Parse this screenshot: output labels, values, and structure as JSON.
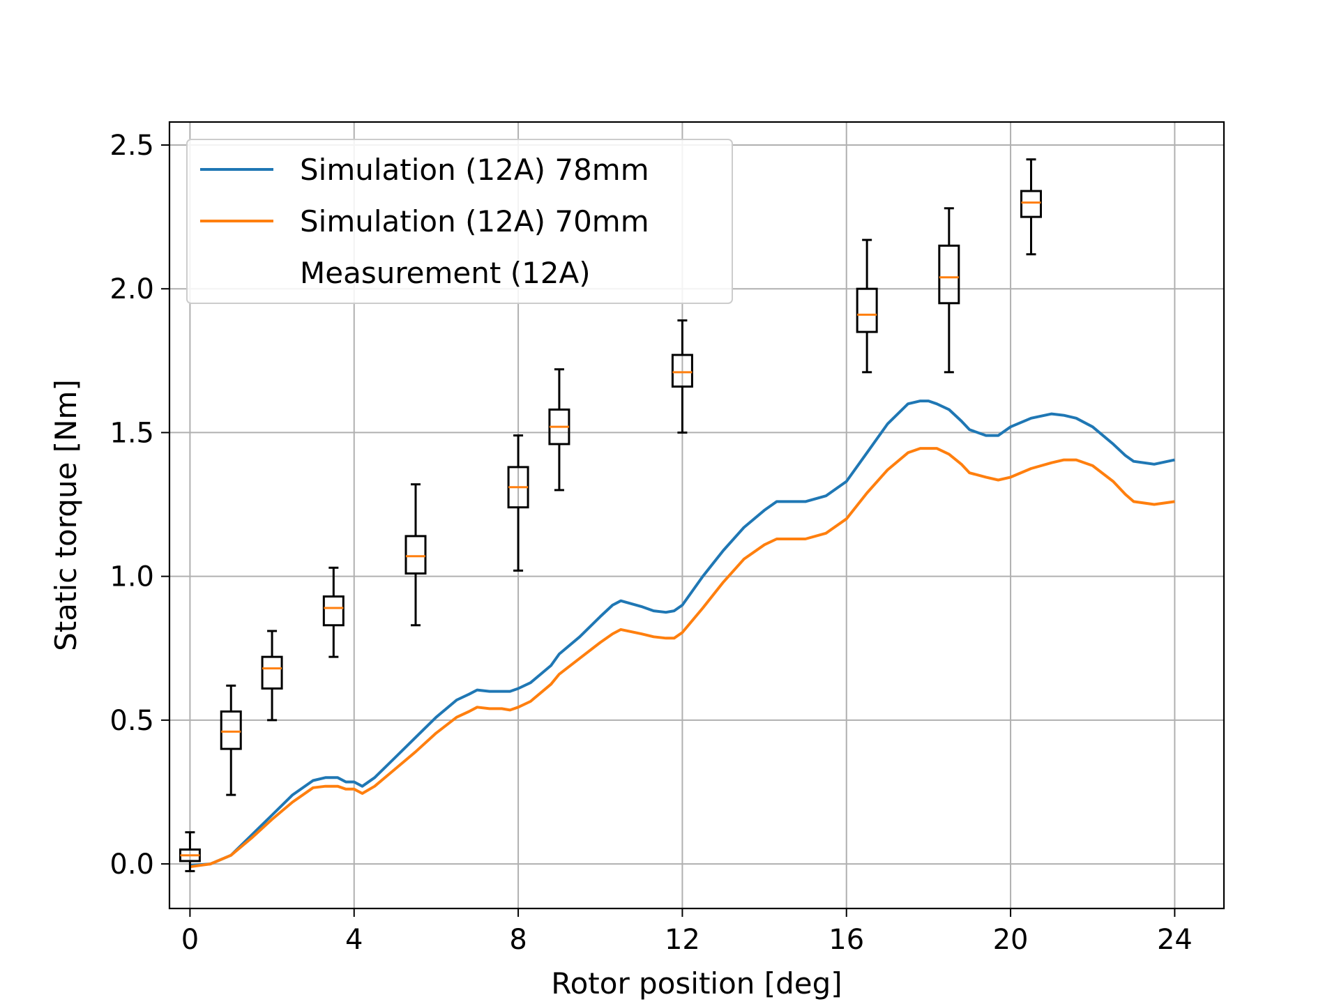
{
  "chart_data": {
    "type": "line",
    "xlabel": "Rotor position [deg]",
    "ylabel": "Static torque [Nm]",
    "xlim": [
      -0.5,
      25.2
    ],
    "ylim": [
      -0.155,
      2.58
    ],
    "xticks": [
      0,
      4,
      8,
      12,
      16,
      20,
      24
    ],
    "yticks": [
      0.0,
      0.5,
      1.0,
      1.5,
      2.0,
      2.5
    ],
    "grid": true,
    "legend_position": "top-left",
    "series": [
      {
        "name": "Simulation (12A) 78mm",
        "color": "#1f77b4",
        "x": [
          0,
          0.5,
          1.0,
          1.5,
          2.0,
          2.5,
          3.0,
          3.3,
          3.6,
          3.8,
          4.0,
          4.2,
          4.5,
          5.0,
          5.5,
          6.0,
          6.5,
          6.8,
          7.0,
          7.3,
          7.6,
          7.8,
          8.0,
          8.3,
          8.8,
          9.0,
          9.5,
          10.0,
          10.3,
          10.5,
          11.0,
          11.3,
          11.6,
          11.8,
          12.0,
          12.5,
          13.0,
          13.5,
          14.0,
          14.3,
          14.6,
          15.0,
          15.5,
          16.0,
          16.5,
          17.0,
          17.5,
          17.8,
          18.0,
          18.2,
          18.5,
          18.8,
          19.0,
          19.4,
          19.7,
          20.0,
          20.5,
          21.0,
          21.3,
          21.6,
          22.0,
          22.5,
          22.8,
          23.0,
          23.5,
          24.0
        ],
        "values": [
          -0.005,
          0.0,
          0.03,
          0.1,
          0.17,
          0.24,
          0.29,
          0.3,
          0.3,
          0.285,
          0.285,
          0.27,
          0.3,
          0.37,
          0.44,
          0.51,
          0.57,
          0.59,
          0.605,
          0.6,
          0.6,
          0.6,
          0.61,
          0.63,
          0.69,
          0.73,
          0.79,
          0.86,
          0.9,
          0.915,
          0.895,
          0.88,
          0.875,
          0.88,
          0.9,
          1.0,
          1.09,
          1.17,
          1.23,
          1.26,
          1.26,
          1.26,
          1.28,
          1.33,
          1.43,
          1.53,
          1.6,
          1.61,
          1.61,
          1.6,
          1.58,
          1.54,
          1.51,
          1.49,
          1.49,
          1.52,
          1.55,
          1.565,
          1.56,
          1.55,
          1.52,
          1.46,
          1.42,
          1.4,
          1.39,
          1.405
        ]
      },
      {
        "name": "Simulation (12A) 70mm",
        "color": "#ff7f0e",
        "x": [
          0,
          0.5,
          1.0,
          1.5,
          2.0,
          2.5,
          3.0,
          3.3,
          3.6,
          3.8,
          4.0,
          4.2,
          4.5,
          5.0,
          5.5,
          6.0,
          6.5,
          6.8,
          7.0,
          7.3,
          7.6,
          7.8,
          8.0,
          8.3,
          8.8,
          9.0,
          9.5,
          10.0,
          10.3,
          10.5,
          11.0,
          11.3,
          11.6,
          11.8,
          12.0,
          12.5,
          13.0,
          13.5,
          14.0,
          14.3,
          14.6,
          15.0,
          15.5,
          16.0,
          16.5,
          17.0,
          17.5,
          17.8,
          18.0,
          18.2,
          18.5,
          18.8,
          19.0,
          19.4,
          19.7,
          20.0,
          20.5,
          21.0,
          21.3,
          21.6,
          22.0,
          22.5,
          22.8,
          23.0,
          23.5,
          24.0
        ],
        "values": [
          -0.01,
          0.0,
          0.03,
          0.09,
          0.155,
          0.215,
          0.265,
          0.27,
          0.27,
          0.26,
          0.26,
          0.245,
          0.27,
          0.33,
          0.39,
          0.455,
          0.51,
          0.53,
          0.545,
          0.54,
          0.54,
          0.535,
          0.545,
          0.565,
          0.625,
          0.66,
          0.715,
          0.77,
          0.8,
          0.815,
          0.8,
          0.79,
          0.785,
          0.785,
          0.805,
          0.89,
          0.98,
          1.06,
          1.11,
          1.13,
          1.13,
          1.13,
          1.15,
          1.2,
          1.29,
          1.37,
          1.43,
          1.445,
          1.445,
          1.445,
          1.425,
          1.39,
          1.36,
          1.345,
          1.335,
          1.345,
          1.375,
          1.395,
          1.405,
          1.405,
          1.385,
          1.33,
          1.285,
          1.26,
          1.25,
          1.26
        ]
      }
    ],
    "boxplots": {
      "name": "Measurement (12A)",
      "box_color": "#000000",
      "median_color": "#ff7f0e",
      "items": [
        {
          "x": 0,
          "whisker_low": -0.025,
          "q1": 0.01,
          "median": 0.03,
          "q3": 0.05,
          "whisker_high": 0.11
        },
        {
          "x": 1,
          "whisker_low": 0.24,
          "q1": 0.4,
          "median": 0.46,
          "q3": 0.53,
          "whisker_high": 0.62
        },
        {
          "x": 2,
          "whisker_low": 0.5,
          "q1": 0.61,
          "median": 0.68,
          "q3": 0.72,
          "whisker_high": 0.81
        },
        {
          "x": 3.5,
          "whisker_low": 0.72,
          "q1": 0.83,
          "median": 0.89,
          "q3": 0.93,
          "whisker_high": 1.03
        },
        {
          "x": 5.5,
          "whisker_low": 0.83,
          "q1": 1.01,
          "median": 1.07,
          "q3": 1.14,
          "whisker_high": 1.32
        },
        {
          "x": 8,
          "whisker_low": 1.02,
          "q1": 1.24,
          "median": 1.31,
          "q3": 1.38,
          "whisker_high": 1.49
        },
        {
          "x": 9,
          "whisker_low": 1.3,
          "q1": 1.46,
          "median": 1.52,
          "q3": 1.58,
          "whisker_high": 1.72
        },
        {
          "x": 12,
          "whisker_low": 1.5,
          "q1": 1.66,
          "median": 1.71,
          "q3": 1.77,
          "whisker_high": 1.89
        },
        {
          "x": 16.5,
          "whisker_low": 1.71,
          "q1": 1.85,
          "median": 1.91,
          "q3": 2.0,
          "whisker_high": 2.17
        },
        {
          "x": 18.5,
          "whisker_low": 1.71,
          "q1": 1.95,
          "median": 2.04,
          "q3": 2.15,
          "whisker_high": 2.28
        },
        {
          "x": 20.5,
          "whisker_low": 2.12,
          "q1": 2.25,
          "median": 2.3,
          "q3": 2.34,
          "whisker_high": 2.45
        }
      ]
    }
  }
}
